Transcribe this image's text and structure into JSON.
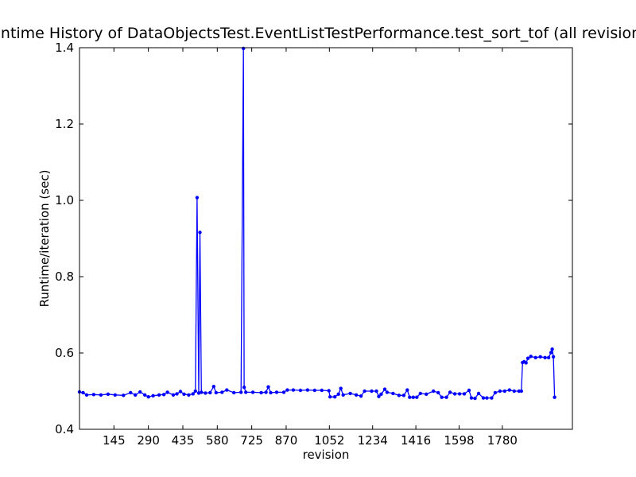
{
  "chart_data": {
    "type": "line",
    "title": "Runtime History of DataObjectsTest.EventListTestPerformance.test_sort_tof (all revisions)",
    "xlabel": "revision",
    "ylabel": "Runtime/iteration (sec)",
    "xlim": [
      0,
      2075
    ],
    "ylim": [
      0.4,
      1.4
    ],
    "x_ticks": [
      145,
      290,
      435,
      580,
      725,
      870,
      1052,
      1234,
      1416,
      1598,
      1780
    ],
    "y_ticks": [
      "0.4",
      "0.6",
      "0.8",
      "1.0",
      "1.2",
      "1.4"
    ],
    "grid": false,
    "marker": "dot",
    "series": [
      {
        "color": "#0000ff",
        "points": [
          [
            0,
            0.498
          ],
          [
            15,
            0.496
          ],
          [
            30,
            0.49
          ],
          [
            60,
            0.491
          ],
          [
            90,
            0.49
          ],
          [
            120,
            0.492
          ],
          [
            150,
            0.49
          ],
          [
            185,
            0.489
          ],
          [
            215,
            0.496
          ],
          [
            235,
            0.49
          ],
          [
            255,
            0.498
          ],
          [
            275,
            0.49
          ],
          [
            290,
            0.485
          ],
          [
            310,
            0.488
          ],
          [
            335,
            0.49
          ],
          [
            355,
            0.491
          ],
          [
            370,
            0.497
          ],
          [
            395,
            0.49
          ],
          [
            410,
            0.493
          ],
          [
            425,
            0.499
          ],
          [
            440,
            0.492
          ],
          [
            460,
            0.49
          ],
          [
            478,
            0.493
          ],
          [
            488,
            0.5
          ],
          [
            495,
            1.007
          ],
          [
            502,
            0.495
          ],
          [
            507,
            0.916
          ],
          [
            513,
            0.497
          ],
          [
            530,
            0.495
          ],
          [
            550,
            0.496
          ],
          [
            565,
            0.512
          ],
          [
            575,
            0.496
          ],
          [
            600,
            0.497
          ],
          [
            620,
            0.503
          ],
          [
            650,
            0.496
          ],
          [
            680,
            0.497
          ],
          [
            690,
            1.398
          ],
          [
            693,
            0.51
          ],
          [
            700,
            0.497
          ],
          [
            730,
            0.497
          ],
          [
            765,
            0.496
          ],
          [
            785,
            0.497
          ],
          [
            795,
            0.511
          ],
          [
            805,
            0.496
          ],
          [
            830,
            0.497
          ],
          [
            860,
            0.497
          ],
          [
            875,
            0.503
          ],
          [
            900,
            0.503
          ],
          [
            930,
            0.502
          ],
          [
            960,
            0.503
          ],
          [
            990,
            0.502
          ],
          [
            1020,
            0.502
          ],
          [
            1050,
            0.501
          ],
          [
            1055,
            0.485
          ],
          [
            1075,
            0.485
          ],
          [
            1090,
            0.492
          ],
          [
            1100,
            0.507
          ],
          [
            1110,
            0.49
          ],
          [
            1140,
            0.494
          ],
          [
            1165,
            0.49
          ],
          [
            1185,
            0.487
          ],
          [
            1200,
            0.5
          ],
          [
            1230,
            0.5
          ],
          [
            1250,
            0.5
          ],
          [
            1260,
            0.486
          ],
          [
            1270,
            0.492
          ],
          [
            1285,
            0.505
          ],
          [
            1295,
            0.497
          ],
          [
            1320,
            0.494
          ],
          [
            1345,
            0.489
          ],
          [
            1365,
            0.489
          ],
          [
            1380,
            0.503
          ],
          [
            1390,
            0.484
          ],
          [
            1405,
            0.484
          ],
          [
            1420,
            0.484
          ],
          [
            1435,
            0.494
          ],
          [
            1460,
            0.492
          ],
          [
            1490,
            0.5
          ],
          [
            1510,
            0.496
          ],
          [
            1525,
            0.484
          ],
          [
            1545,
            0.484
          ],
          [
            1560,
            0.497
          ],
          [
            1580,
            0.493
          ],
          [
            1600,
            0.493
          ],
          [
            1620,
            0.493
          ],
          [
            1640,
            0.502
          ],
          [
            1650,
            0.482
          ],
          [
            1665,
            0.481
          ],
          [
            1680,
            0.494
          ],
          [
            1700,
            0.482
          ],
          [
            1715,
            0.482
          ],
          [
            1735,
            0.482
          ],
          [
            1750,
            0.496
          ],
          [
            1770,
            0.5
          ],
          [
            1790,
            0.5
          ],
          [
            1810,
            0.503
          ],
          [
            1830,
            0.5
          ],
          [
            1850,
            0.5
          ],
          [
            1860,
            0.5
          ],
          [
            1865,
            0.575
          ],
          [
            1872,
            0.577
          ],
          [
            1880,
            0.574
          ],
          [
            1888,
            0.586
          ],
          [
            1900,
            0.591
          ],
          [
            1920,
            0.588
          ],
          [
            1940,
            0.59
          ],
          [
            1960,
            0.588
          ],
          [
            1975,
            0.588
          ],
          [
            1985,
            0.601
          ],
          [
            1990,
            0.61
          ],
          [
            1995,
            0.59
          ],
          [
            2000,
            0.484
          ]
        ]
      }
    ]
  }
}
